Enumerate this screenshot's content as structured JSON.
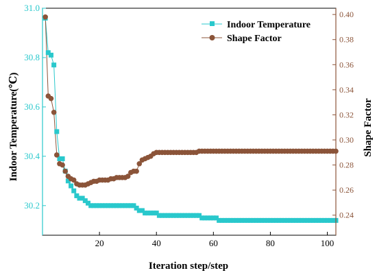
{
  "chart_data": {
    "type": "line",
    "title": "",
    "xlabel": "Iteration step/step",
    "ylabel_left": "Indoor Temperature(℃)",
    "ylabel_right": "Shape Factor",
    "xlim": [
      0,
      103
    ],
    "ylim_left": [
      30.08,
      31.0
    ],
    "ylim_right": [
      0.224,
      0.405
    ],
    "x_ticks": [
      20,
      40,
      60,
      80,
      100
    ],
    "y_left_ticks": [
      30.2,
      30.4,
      30.6,
      30.8,
      31.0
    ],
    "y_left_tick_labels": [
      "30.2",
      "30.4",
      "30.6",
      "30.8",
      "31.0"
    ],
    "y_right_ticks": [
      0.24,
      0.26,
      0.28,
      0.3,
      0.32,
      0.34,
      0.36,
      0.38,
      0.4
    ],
    "y_right_tick_labels": [
      "0.24",
      "0.26",
      "0.28",
      "0.30",
      "0.32",
      "0.34",
      "0.36",
      "0.38",
      "0.40"
    ],
    "grid": false,
    "legend_position": "top-right",
    "colors": {
      "temperature": "#29c8cc",
      "shape_factor": "#8b5439",
      "left_axis": "#29c8cc",
      "right_axis": "#8b5439"
    },
    "series": [
      {
        "name": "Indoor Temperature",
        "axis": "left",
        "marker": "square",
        "x": [
          1,
          2,
          3,
          4,
          5,
          6,
          7,
          8,
          9,
          10,
          11,
          12,
          13,
          14,
          15,
          16,
          17,
          18,
          19,
          20,
          21,
          22,
          23,
          24,
          25,
          26,
          27,
          28,
          29,
          30,
          31,
          32,
          33,
          34,
          35,
          36,
          37,
          38,
          39,
          40,
          41,
          42,
          43,
          44,
          45,
          46,
          47,
          48,
          49,
          50,
          51,
          52,
          53,
          54,
          55,
          56,
          57,
          58,
          59,
          60,
          61,
          62,
          63,
          64,
          65,
          66,
          67,
          68,
          69,
          70,
          71,
          72,
          73,
          74,
          75,
          76,
          77,
          78,
          79,
          80,
          81,
          82,
          83,
          84,
          85,
          86,
          87,
          88,
          89,
          90,
          91,
          92,
          93,
          94,
          95,
          96,
          97,
          98,
          99,
          100,
          101,
          102,
          103
        ],
        "values": [
          30.96,
          30.82,
          30.81,
          30.77,
          30.5,
          30.39,
          30.39,
          30.34,
          30.3,
          30.28,
          30.26,
          30.24,
          30.23,
          30.23,
          30.22,
          30.21,
          30.2,
          30.2,
          30.2,
          30.2,
          30.2,
          30.2,
          30.2,
          30.2,
          30.2,
          30.2,
          30.2,
          30.2,
          30.2,
          30.2,
          30.2,
          30.2,
          30.19,
          30.18,
          30.18,
          30.17,
          30.17,
          30.17,
          30.17,
          30.17,
          30.16,
          30.16,
          30.16,
          30.16,
          30.16,
          30.16,
          30.16,
          30.16,
          30.16,
          30.16,
          30.16,
          30.16,
          30.16,
          30.16,
          30.16,
          30.15,
          30.15,
          30.15,
          30.15,
          30.15,
          30.15,
          30.14,
          30.14,
          30.14,
          30.14,
          30.14,
          30.14,
          30.14,
          30.14,
          30.14,
          30.14,
          30.14,
          30.14,
          30.14,
          30.14,
          30.14,
          30.14,
          30.14,
          30.14,
          30.14,
          30.14,
          30.14,
          30.14,
          30.14,
          30.14,
          30.14,
          30.14,
          30.14,
          30.14,
          30.14,
          30.14,
          30.14,
          30.14,
          30.14,
          30.14,
          30.14,
          30.14,
          30.14,
          30.14,
          30.14,
          30.14,
          30.14,
          30.14
        ]
      },
      {
        "name": "Shape Factor",
        "axis": "right",
        "marker": "circle",
        "x": [
          1,
          2,
          3,
          4,
          5,
          6,
          7,
          8,
          9,
          10,
          11,
          12,
          13,
          14,
          15,
          16,
          17,
          18,
          19,
          20,
          21,
          22,
          23,
          24,
          25,
          26,
          27,
          28,
          29,
          30,
          31,
          32,
          33,
          34,
          35,
          36,
          37,
          38,
          39,
          40,
          41,
          42,
          43,
          44,
          45,
          46,
          47,
          48,
          49,
          50,
          51,
          52,
          53,
          54,
          55,
          56,
          57,
          58,
          59,
          60,
          61,
          62,
          63,
          64,
          65,
          66,
          67,
          68,
          69,
          70,
          71,
          72,
          73,
          74,
          75,
          76,
          77,
          78,
          79,
          80,
          81,
          82,
          83,
          84,
          85,
          86,
          87,
          88,
          89,
          90,
          91,
          92,
          93,
          94,
          95,
          96,
          97,
          98,
          99,
          100,
          101,
          102,
          103
        ],
        "values": [
          0.398,
          0.335,
          0.333,
          0.322,
          0.288,
          0.281,
          0.28,
          0.275,
          0.271,
          0.269,
          0.268,
          0.265,
          0.264,
          0.264,
          0.264,
          0.265,
          0.266,
          0.267,
          0.267,
          0.268,
          0.268,
          0.268,
          0.268,
          0.269,
          0.269,
          0.27,
          0.27,
          0.27,
          0.27,
          0.271,
          0.274,
          0.275,
          0.275,
          0.281,
          0.284,
          0.285,
          0.286,
          0.287,
          0.289,
          0.29,
          0.29,
          0.29,
          0.29,
          0.29,
          0.29,
          0.29,
          0.29,
          0.29,
          0.29,
          0.29,
          0.29,
          0.29,
          0.29,
          0.29,
          0.291,
          0.291,
          0.291,
          0.291,
          0.291,
          0.291,
          0.291,
          0.291,
          0.291,
          0.291,
          0.291,
          0.291,
          0.291,
          0.291,
          0.291,
          0.291,
          0.291,
          0.291,
          0.291,
          0.291,
          0.291,
          0.291,
          0.291,
          0.291,
          0.291,
          0.291,
          0.291,
          0.291,
          0.291,
          0.291,
          0.291,
          0.291,
          0.291,
          0.291,
          0.291,
          0.291,
          0.291,
          0.291,
          0.291,
          0.291,
          0.291,
          0.291,
          0.291,
          0.291,
          0.291,
          0.291,
          0.291,
          0.291,
          0.291
        ]
      }
    ]
  }
}
